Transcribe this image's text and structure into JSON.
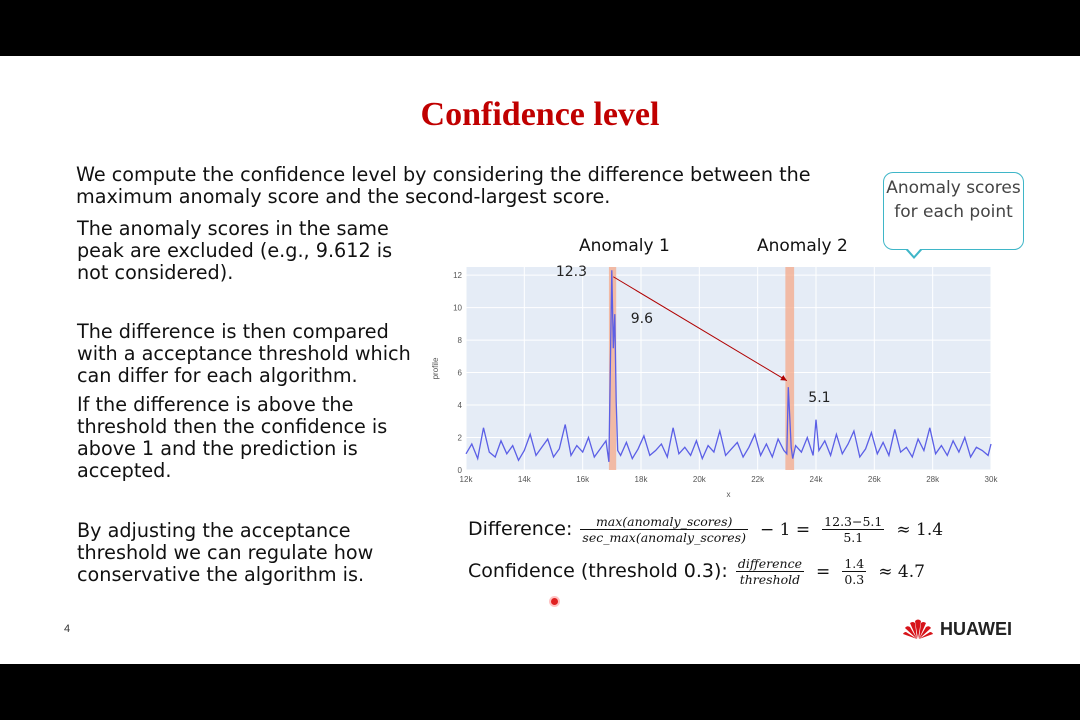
{
  "slide": {
    "title": "Confidence level",
    "intro": "We compute the confidence level by considering the difference between the maximum anomaly score and the second-largest score.",
    "paragraphs": [
      "The anomaly scores in the same peak are excluded (e.g., 9.612 is not considered).",
      "The difference is then compared with a acceptance threshold which can differ for each algorithm.",
      "If the difference is above the threshold then the confidence is above 1 and the prediction is accepted.",
      "By adjusting the acceptance threshold we can regulate how conservative the algorithm is."
    ],
    "callout": "Anomaly scores for each point",
    "anomaly_labels": [
      "Anomaly 1",
      "Anomaly 2"
    ],
    "page_number": "4",
    "logo_text": "HUAWEI"
  },
  "formulas": {
    "difference_label": "Difference:",
    "difference_num": "max(anomaly_scores)",
    "difference_den": "sec_max(anomaly_scores)",
    "minus_one": "− 1 =",
    "values_num": "12.3−5.1",
    "values_den": "5.1",
    "difference_result": "≈ 1.4",
    "confidence_label": "Confidence (threshold 0.3):",
    "confidence_num": "difference",
    "confidence_den": "threshold",
    "equals": "=",
    "conf_values_num": "1.4",
    "conf_values_den": "0.3",
    "confidence_result": "≈ 4.7"
  },
  "chart_data": {
    "type": "line",
    "xlabel": "x",
    "ylabel": "profile",
    "xlim": [
      12000,
      30000
    ],
    "ylim": [
      0,
      12.5
    ],
    "x_ticks": [
      "12k",
      "14k",
      "16k",
      "18k",
      "20k",
      "22k",
      "24k",
      "26k",
      "28k",
      "30k"
    ],
    "x_tick_values": [
      12000,
      14000,
      16000,
      18000,
      20000,
      22000,
      24000,
      26000,
      28000,
      30000
    ],
    "y_ticks": [
      "0",
      "2",
      "4",
      "6",
      "8",
      "10",
      "12"
    ],
    "y_tick_values": [
      0,
      2,
      4,
      6,
      8,
      10,
      12
    ],
    "series": [
      {
        "color": "#5b5fe6",
        "x": [
          12000,
          12200,
          12400,
          12600,
          12800,
          13000,
          13200,
          13400,
          13600,
          13800,
          14000,
          14200,
          14400,
          14600,
          14800,
          15000,
          15200,
          15400,
          15600,
          15800,
          16000,
          16200,
          16400,
          16600,
          16800,
          16900,
          17000,
          17050,
          17100,
          17150,
          17200,
          17300,
          17500,
          17700,
          17900,
          18100,
          18300,
          18500,
          18700,
          18900,
          19100,
          19300,
          19500,
          19700,
          19900,
          20100,
          20300,
          20500,
          20700,
          20900,
          21100,
          21300,
          21500,
          21700,
          21900,
          22100,
          22300,
          22500,
          22700,
          22900,
          23000,
          23050,
          23100,
          23150,
          23200,
          23300,
          23500,
          23700,
          23900,
          24000,
          24100,
          24300,
          24500,
          24700,
          24900,
          25100,
          25300,
          25500,
          25700,
          25900,
          26100,
          26300,
          26500,
          26700,
          26900,
          27100,
          27300,
          27500,
          27700,
          27900,
          28100,
          28300,
          28500,
          28700,
          28900,
          29100,
          29300,
          29500,
          29700,
          29900,
          30000
        ],
        "y": [
          1.0,
          1.6,
          0.7,
          2.6,
          1.1,
          0.8,
          1.8,
          1.0,
          1.5,
          0.6,
          1.2,
          2.2,
          0.9,
          1.4,
          1.9,
          0.8,
          1.3,
          2.8,
          0.9,
          1.5,
          1.1,
          2.0,
          0.8,
          1.3,
          1.8,
          0.5,
          12.3,
          7.5,
          9.6,
          4.2,
          1.2,
          0.9,
          1.7,
          0.7,
          1.3,
          2.1,
          0.9,
          1.2,
          1.6,
          0.8,
          2.6,
          1.0,
          1.4,
          0.9,
          1.8,
          0.7,
          1.5,
          1.1,
          2.4,
          0.9,
          1.3,
          1.7,
          0.8,
          1.4,
          2.2,
          0.9,
          1.6,
          0.8,
          1.9,
          1.2,
          1.0,
          5.1,
          3.2,
          1.4,
          0.7,
          1.5,
          1.1,
          2.0,
          0.9,
          3.1,
          1.2,
          1.8,
          0.9,
          2.2,
          1.0,
          1.6,
          2.4,
          0.8,
          1.3,
          2.3,
          1.0,
          1.7,
          0.9,
          2.5,
          1.1,
          1.4,
          0.8,
          1.9,
          1.2,
          2.6,
          1.0,
          1.5,
          0.9,
          1.8,
          1.1,
          2.0,
          0.8,
          1.4,
          1.2,
          0.9,
          1.6
        ]
      }
    ],
    "highlights": [
      {
        "label": "Anomaly 1",
        "x_start": 16900,
        "x_end": 17150
      },
      {
        "label": "Anomaly 2",
        "x_start": 22950,
        "x_end": 23250
      }
    ],
    "annotations": [
      {
        "text": "12.3",
        "x": 17000,
        "y": 12.3
      },
      {
        "text": "9.6",
        "x": 17100,
        "y": 9.6
      },
      {
        "text": "5.1",
        "x": 23050,
        "y": 5.1
      }
    ],
    "arrow": {
      "from": [
        17050,
        11.9
      ],
      "to": [
        23000,
        5.5
      ],
      "color": "#b00000"
    }
  }
}
